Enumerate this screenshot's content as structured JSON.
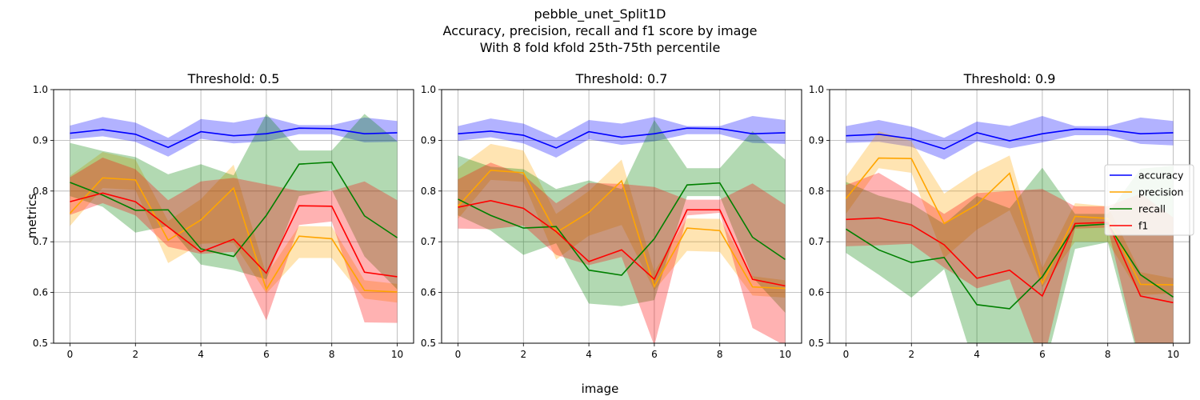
{
  "figure": {
    "title_lines": [
      "pebble_unet_Split1D",
      "Accuracy, precision, recall and f1 score by image",
      "With 8 fold kfold 25th-75th percentile"
    ],
    "xlabel": "image",
    "ylabel": "metrics"
  },
  "legend": {
    "placement": "right of third panel",
    "entries": [
      "accuracy",
      "precision",
      "recall",
      "f1"
    ]
  },
  "colors": {
    "accuracy": "#0000ff",
    "precision": "#ffa500",
    "recall": "#008000",
    "f1": "#ff0000"
  },
  "chart_data": [
    {
      "type": "line",
      "title": "Threshold: 0.5",
      "x": [
        0,
        1,
        2,
        3,
        4,
        5,
        6,
        7,
        8,
        9,
        10
      ],
      "xlim": [
        -0.5,
        10.5
      ],
      "ylim": [
        0.5,
        1.0
      ],
      "xticks": [
        "0",
        "2",
        "4",
        "6",
        "8",
        "10"
      ],
      "yticks": [
        "0.5",
        "0.6",
        "0.7",
        "0.8",
        "0.9",
        "1.0"
      ],
      "grid": true,
      "series": [
        {
          "name": "accuracy",
          "values": [
            0.914,
            0.921,
            0.912,
            0.886,
            0.917,
            0.909,
            0.913,
            0.924,
            0.923,
            0.913,
            0.915
          ],
          "lower": [
            0.902,
            0.908,
            0.897,
            0.868,
            0.903,
            0.894,
            0.898,
            0.912,
            0.912,
            0.896,
            0.897
          ],
          "upper": [
            0.929,
            0.946,
            0.935,
            0.905,
            0.942,
            0.935,
            0.947,
            0.93,
            0.93,
            0.945,
            0.938
          ]
        },
        {
          "name": "precision",
          "values": [
            0.756,
            0.826,
            0.822,
            0.703,
            0.743,
            0.806,
            0.606,
            0.711,
            0.706,
            0.604,
            0.601
          ],
          "lower": [
            0.731,
            0.806,
            0.802,
            0.658,
            0.696,
            0.698,
            0.598,
            0.668,
            0.668,
            0.588,
            0.58
          ],
          "upper": [
            0.83,
            0.877,
            0.862,
            0.741,
            0.784,
            0.852,
            0.635,
            0.731,
            0.73,
            0.624,
            0.617
          ]
        },
        {
          "name": "recall",
          "values": [
            0.817,
            0.792,
            0.762,
            0.763,
            0.686,
            0.671,
            0.752,
            0.853,
            0.857,
            0.751,
            0.708
          ],
          "lower": [
            0.79,
            0.769,
            0.718,
            0.731,
            0.655,
            0.644,
            0.626,
            0.79,
            0.802,
            0.671,
            0.606
          ],
          "upper": [
            0.895,
            0.879,
            0.867,
            0.833,
            0.853,
            0.831,
            0.952,
            0.88,
            0.88,
            0.952,
            0.898
          ]
        },
        {
          "name": "f1",
          "values": [
            0.779,
            0.796,
            0.779,
            0.729,
            0.68,
            0.705,
            0.638,
            0.771,
            0.77,
            0.64,
            0.631
          ],
          "lower": [
            0.753,
            0.776,
            0.752,
            0.69,
            0.676,
            0.68,
            0.545,
            0.733,
            0.74,
            0.541,
            0.54
          ],
          "upper": [
            0.827,
            0.866,
            0.843,
            0.782,
            0.819,
            0.826,
            0.813,
            0.8,
            0.8,
            0.819,
            0.782
          ]
        }
      ]
    },
    {
      "type": "line",
      "title": "Threshold: 0.7",
      "x": [
        0,
        1,
        2,
        3,
        4,
        5,
        6,
        7,
        8,
        9,
        10
      ],
      "xlim": [
        -0.5,
        10.5
      ],
      "ylim": [
        0.5,
        1.0
      ],
      "xticks": [
        "0",
        "2",
        "4",
        "6",
        "8",
        "10"
      ],
      "yticks": [
        "0.5",
        "0.6",
        "0.7",
        "0.8",
        "0.9",
        "1.0"
      ],
      "grid": true,
      "series": [
        {
          "name": "accuracy",
          "values": [
            0.913,
            0.918,
            0.91,
            0.885,
            0.917,
            0.906,
            0.913,
            0.924,
            0.923,
            0.913,
            0.915
          ],
          "lower": [
            0.899,
            0.906,
            0.894,
            0.866,
            0.902,
            0.891,
            0.898,
            0.912,
            0.912,
            0.895,
            0.893
          ],
          "upper": [
            0.928,
            0.943,
            0.933,
            0.905,
            0.94,
            0.933,
            0.946,
            0.928,
            0.928,
            0.948,
            0.94
          ]
        },
        {
          "name": "precision",
          "values": [
            0.77,
            0.841,
            0.836,
            0.718,
            0.758,
            0.82,
            0.612,
            0.727,
            0.722,
            0.611,
            0.608
          ],
          "lower": [
            0.745,
            0.822,
            0.818,
            0.665,
            0.712,
            0.733,
            0.604,
            0.682,
            0.68,
            0.594,
            0.59
          ],
          "upper": [
            0.845,
            0.893,
            0.88,
            0.755,
            0.8,
            0.862,
            0.641,
            0.746,
            0.745,
            0.632,
            0.624
          ]
        },
        {
          "name": "recall",
          "values": [
            0.784,
            0.752,
            0.727,
            0.73,
            0.644,
            0.634,
            0.706,
            0.812,
            0.816,
            0.709,
            0.665
          ],
          "lower": [
            0.752,
            0.722,
            0.674,
            0.697,
            0.578,
            0.573,
            0.585,
            0.79,
            0.79,
            0.63,
            0.56
          ],
          "upper": [
            0.87,
            0.848,
            0.843,
            0.804,
            0.821,
            0.804,
            0.94,
            0.845,
            0.845,
            0.918,
            0.862
          ]
        },
        {
          "name": "f1",
          "values": [
            0.768,
            0.781,
            0.766,
            0.72,
            0.661,
            0.684,
            0.626,
            0.763,
            0.763,
            0.626,
            0.613
          ],
          "lower": [
            0.726,
            0.725,
            0.732,
            0.674,
            0.654,
            0.67,
            0.495,
            0.752,
            0.757,
            0.53,
            0.495
          ],
          "upper": [
            0.823,
            0.856,
            0.832,
            0.776,
            0.816,
            0.814,
            0.808,
            0.783,
            0.783,
            0.815,
            0.773
          ]
        }
      ]
    },
    {
      "type": "line",
      "title": "Threshold: 0.9",
      "x": [
        0,
        1,
        2,
        3,
        4,
        5,
        6,
        7,
        8,
        9,
        10
      ],
      "xlim": [
        -0.5,
        10.5
      ],
      "ylim": [
        0.5,
        1.0
      ],
      "xticks": [
        "0",
        "2",
        "4",
        "6",
        "8",
        "10"
      ],
      "yticks": [
        "0.5",
        "0.6",
        "0.7",
        "0.8",
        "0.9",
        "1.0"
      ],
      "grid": true,
      "series": [
        {
          "name": "accuracy",
          "values": [
            0.909,
            0.912,
            0.903,
            0.883,
            0.915,
            0.899,
            0.913,
            0.922,
            0.921,
            0.913,
            0.915
          ],
          "lower": [
            0.895,
            0.897,
            0.887,
            0.862,
            0.898,
            0.884,
            0.896,
            0.91,
            0.91,
            0.893,
            0.89
          ],
          "upper": [
            0.928,
            0.94,
            0.927,
            0.905,
            0.937,
            0.928,
            0.948,
            0.928,
            0.928,
            0.945,
            0.938
          ]
        },
        {
          "name": "precision",
          "values": [
            0.785,
            0.865,
            0.864,
            0.736,
            0.773,
            0.835,
            0.618,
            0.75,
            0.746,
            0.616,
            0.615
          ],
          "lower": [
            0.755,
            0.845,
            0.836,
            0.668,
            0.724,
            0.762,
            0.61,
            0.7,
            0.7,
            0.595,
            0.598
          ],
          "upper": [
            0.828,
            0.918,
            0.898,
            0.795,
            0.838,
            0.87,
            0.648,
            0.776,
            0.77,
            0.64,
            0.628
          ]
        },
        {
          "name": "recall",
          "values": [
            0.725,
            0.684,
            0.659,
            0.669,
            0.576,
            0.568,
            0.631,
            0.731,
            0.735,
            0.635,
            0.591
          ],
          "lower": [
            0.678,
            0.635,
            0.59,
            0.646,
            0.44,
            0.492,
            0.432,
            0.686,
            0.699,
            0.453,
            0.448
          ],
          "upper": [
            0.818,
            0.791,
            0.775,
            0.735,
            0.79,
            0.766,
            0.846,
            0.755,
            0.755,
            0.844,
            0.85
          ]
        },
        {
          "name": "f1",
          "values": [
            0.744,
            0.747,
            0.733,
            0.694,
            0.628,
            0.644,
            0.593,
            0.736,
            0.738,
            0.593,
            0.58
          ],
          "lower": [
            0.691,
            0.693,
            0.696,
            0.649,
            0.608,
            0.626,
            0.455,
            0.726,
            0.728,
            0.458,
            0.47
          ],
          "upper": [
            0.812,
            0.836,
            0.798,
            0.755,
            0.796,
            0.8,
            0.804,
            0.77,
            0.77,
            0.795,
            0.748
          ]
        }
      ]
    }
  ]
}
